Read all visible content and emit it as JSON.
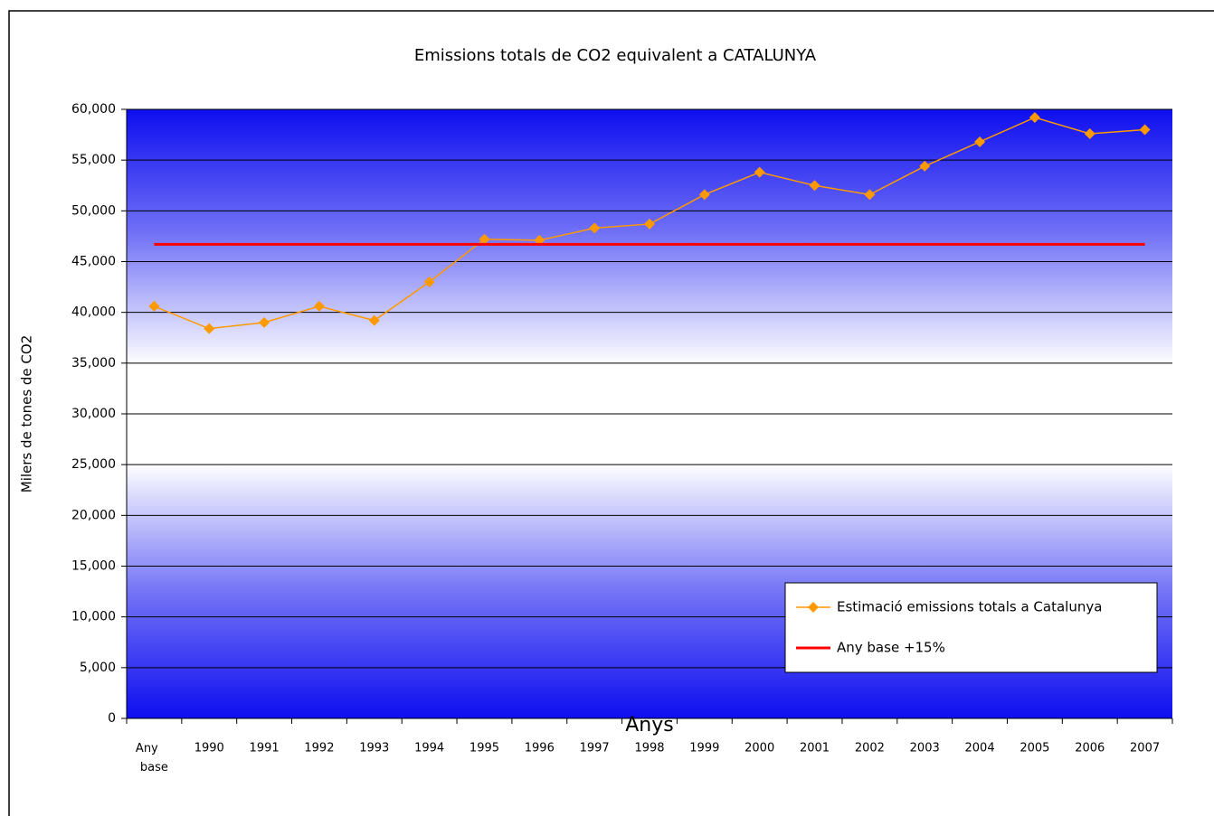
{
  "chart_data": {
    "type": "line",
    "title": "Emissions totals de CO2 equivalent a CATALUNYA",
    "x_label": "Anys",
    "y_label": "Milers de tones de CO2",
    "categories": [
      "Any base",
      "1990",
      "1991",
      "1992",
      "1993",
      "1994",
      "1995",
      "1996",
      "1997",
      "1998",
      "1999",
      "2000",
      "2001",
      "2002",
      "2003",
      "2004",
      "2005",
      "2006",
      "2007"
    ],
    "series": [
      {
        "name": "Estimació emissions totals a Catalunya",
        "color": "#ff9900",
        "marker": "diamond",
        "values": [
          40600,
          38400,
          39000,
          40600,
          39200,
          43000,
          47200,
          47100,
          48300,
          48700,
          51600,
          53800,
          52500,
          51600,
          54400,
          56800,
          59200,
          57600,
          58000
        ]
      },
      {
        "name": "Any base +15%",
        "color": "#ff0000",
        "marker": "none",
        "values": [
          46700,
          46700,
          46700,
          46700,
          46700,
          46700,
          46700,
          46700,
          46700,
          46700,
          46700,
          46700,
          46700,
          46700,
          46700,
          46700,
          46700,
          46700,
          46700
        ]
      }
    ],
    "ylim": [
      0,
      60000
    ],
    "yticks": [
      0,
      {
        "value": 5000,
        "label": "5,000"
      },
      {
        "value": 10000,
        "label": "10,000"
      },
      {
        "value": 15000,
        "label": "15,000"
      },
      {
        "value": 20000,
        "label": "20,000"
      },
      {
        "value": 25000,
        "label": "25,000"
      },
      {
        "value": 30000,
        "label": "30,000"
      },
      {
        "value": 35000,
        "label": "35,000"
      },
      {
        "value": 40000,
        "label": "40,000"
      },
      {
        "value": 45000,
        "label": "45,000"
      },
      {
        "value": 50000,
        "label": "50,000"
      },
      {
        "value": 55000,
        "label": "55,000"
      },
      {
        "value": 60000,
        "label": "60,000"
      }
    ],
    "grid": true,
    "legend": "lower right"
  }
}
